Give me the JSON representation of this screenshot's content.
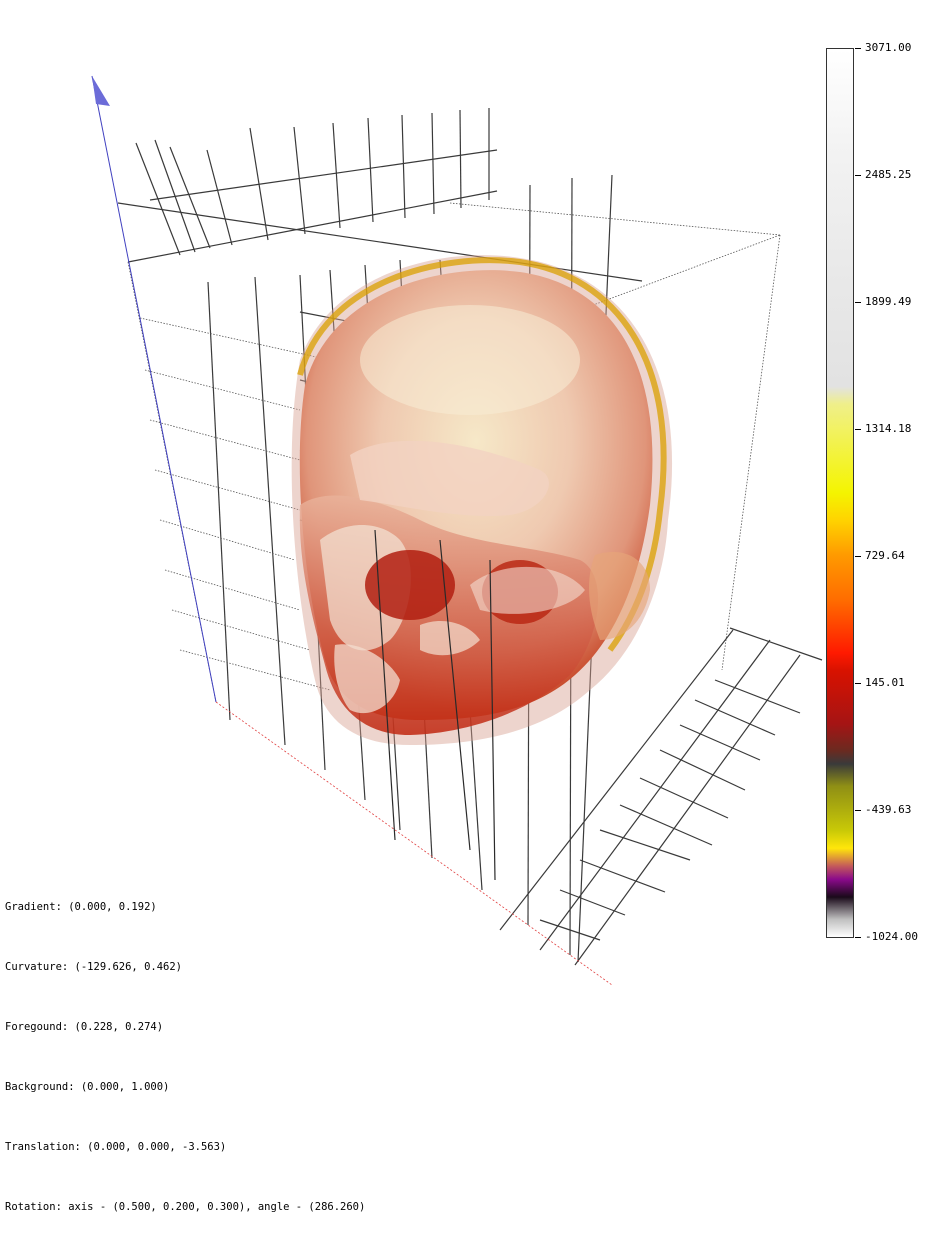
{
  "colorbar": {
    "ticks": [
      "3071.00",
      "2485.25",
      "1899.49",
      "1314.18",
      "729.64",
      "145.01",
      "-439.63",
      "-1024.00"
    ]
  },
  "info": {
    "gradient": "Gradient: (0.000, 0.192)",
    "curvature": "Curvature: (-129.626, 0.462)",
    "foreground": "Foregound: (0.228, 0.274)",
    "background": "Background: (0.000, 1.000)",
    "translation": "Translation: (0.000, 0.000, -3.563)",
    "rotation": "Rotation: axis - (0.500, 0.200, 0.300), angle - (286.260)"
  },
  "colors": {
    "grid": "#333333",
    "axis_blue": "#4040c0",
    "axis_red": "#e04040",
    "skull_bone": "#f3dccc",
    "skull_tissue": "#c62b13",
    "skull_rim": "#d9a000"
  },
  "icons": [
    "arrow-icon"
  ]
}
